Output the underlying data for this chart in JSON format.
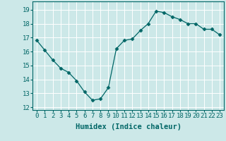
{
  "xlabel": "Humidex (Indice chaleur)",
  "x_values": [
    0,
    1,
    2,
    3,
    4,
    5,
    6,
    7,
    8,
    9,
    10,
    11,
    12,
    13,
    14,
    15,
    16,
    17,
    18,
    19,
    20,
    21,
    22,
    23
  ],
  "y_values": [
    16.8,
    16.1,
    15.4,
    14.8,
    14.5,
    13.9,
    13.1,
    12.5,
    12.6,
    13.4,
    16.2,
    16.8,
    16.9,
    17.5,
    18.0,
    18.9,
    18.8,
    18.5,
    18.3,
    18.0,
    18.0,
    17.6,
    17.6,
    17.2
  ],
  "line_color": "#006666",
  "marker": "D",
  "marker_size": 2.5,
  "bg_color": "#cce8e8",
  "grid_color": "#aacccc",
  "ylim": [
    11.8,
    19.6
  ],
  "xlim": [
    -0.5,
    23.5
  ],
  "yticks": [
    12,
    13,
    14,
    15,
    16,
    17,
    18,
    19
  ],
  "xticks": [
    0,
    1,
    2,
    3,
    4,
    5,
    6,
    7,
    8,
    9,
    10,
    11,
    12,
    13,
    14,
    15,
    16,
    17,
    18,
    19,
    20,
    21,
    22,
    23
  ],
  "tick_label_fontsize": 6.5,
  "xlabel_fontsize": 7.5
}
